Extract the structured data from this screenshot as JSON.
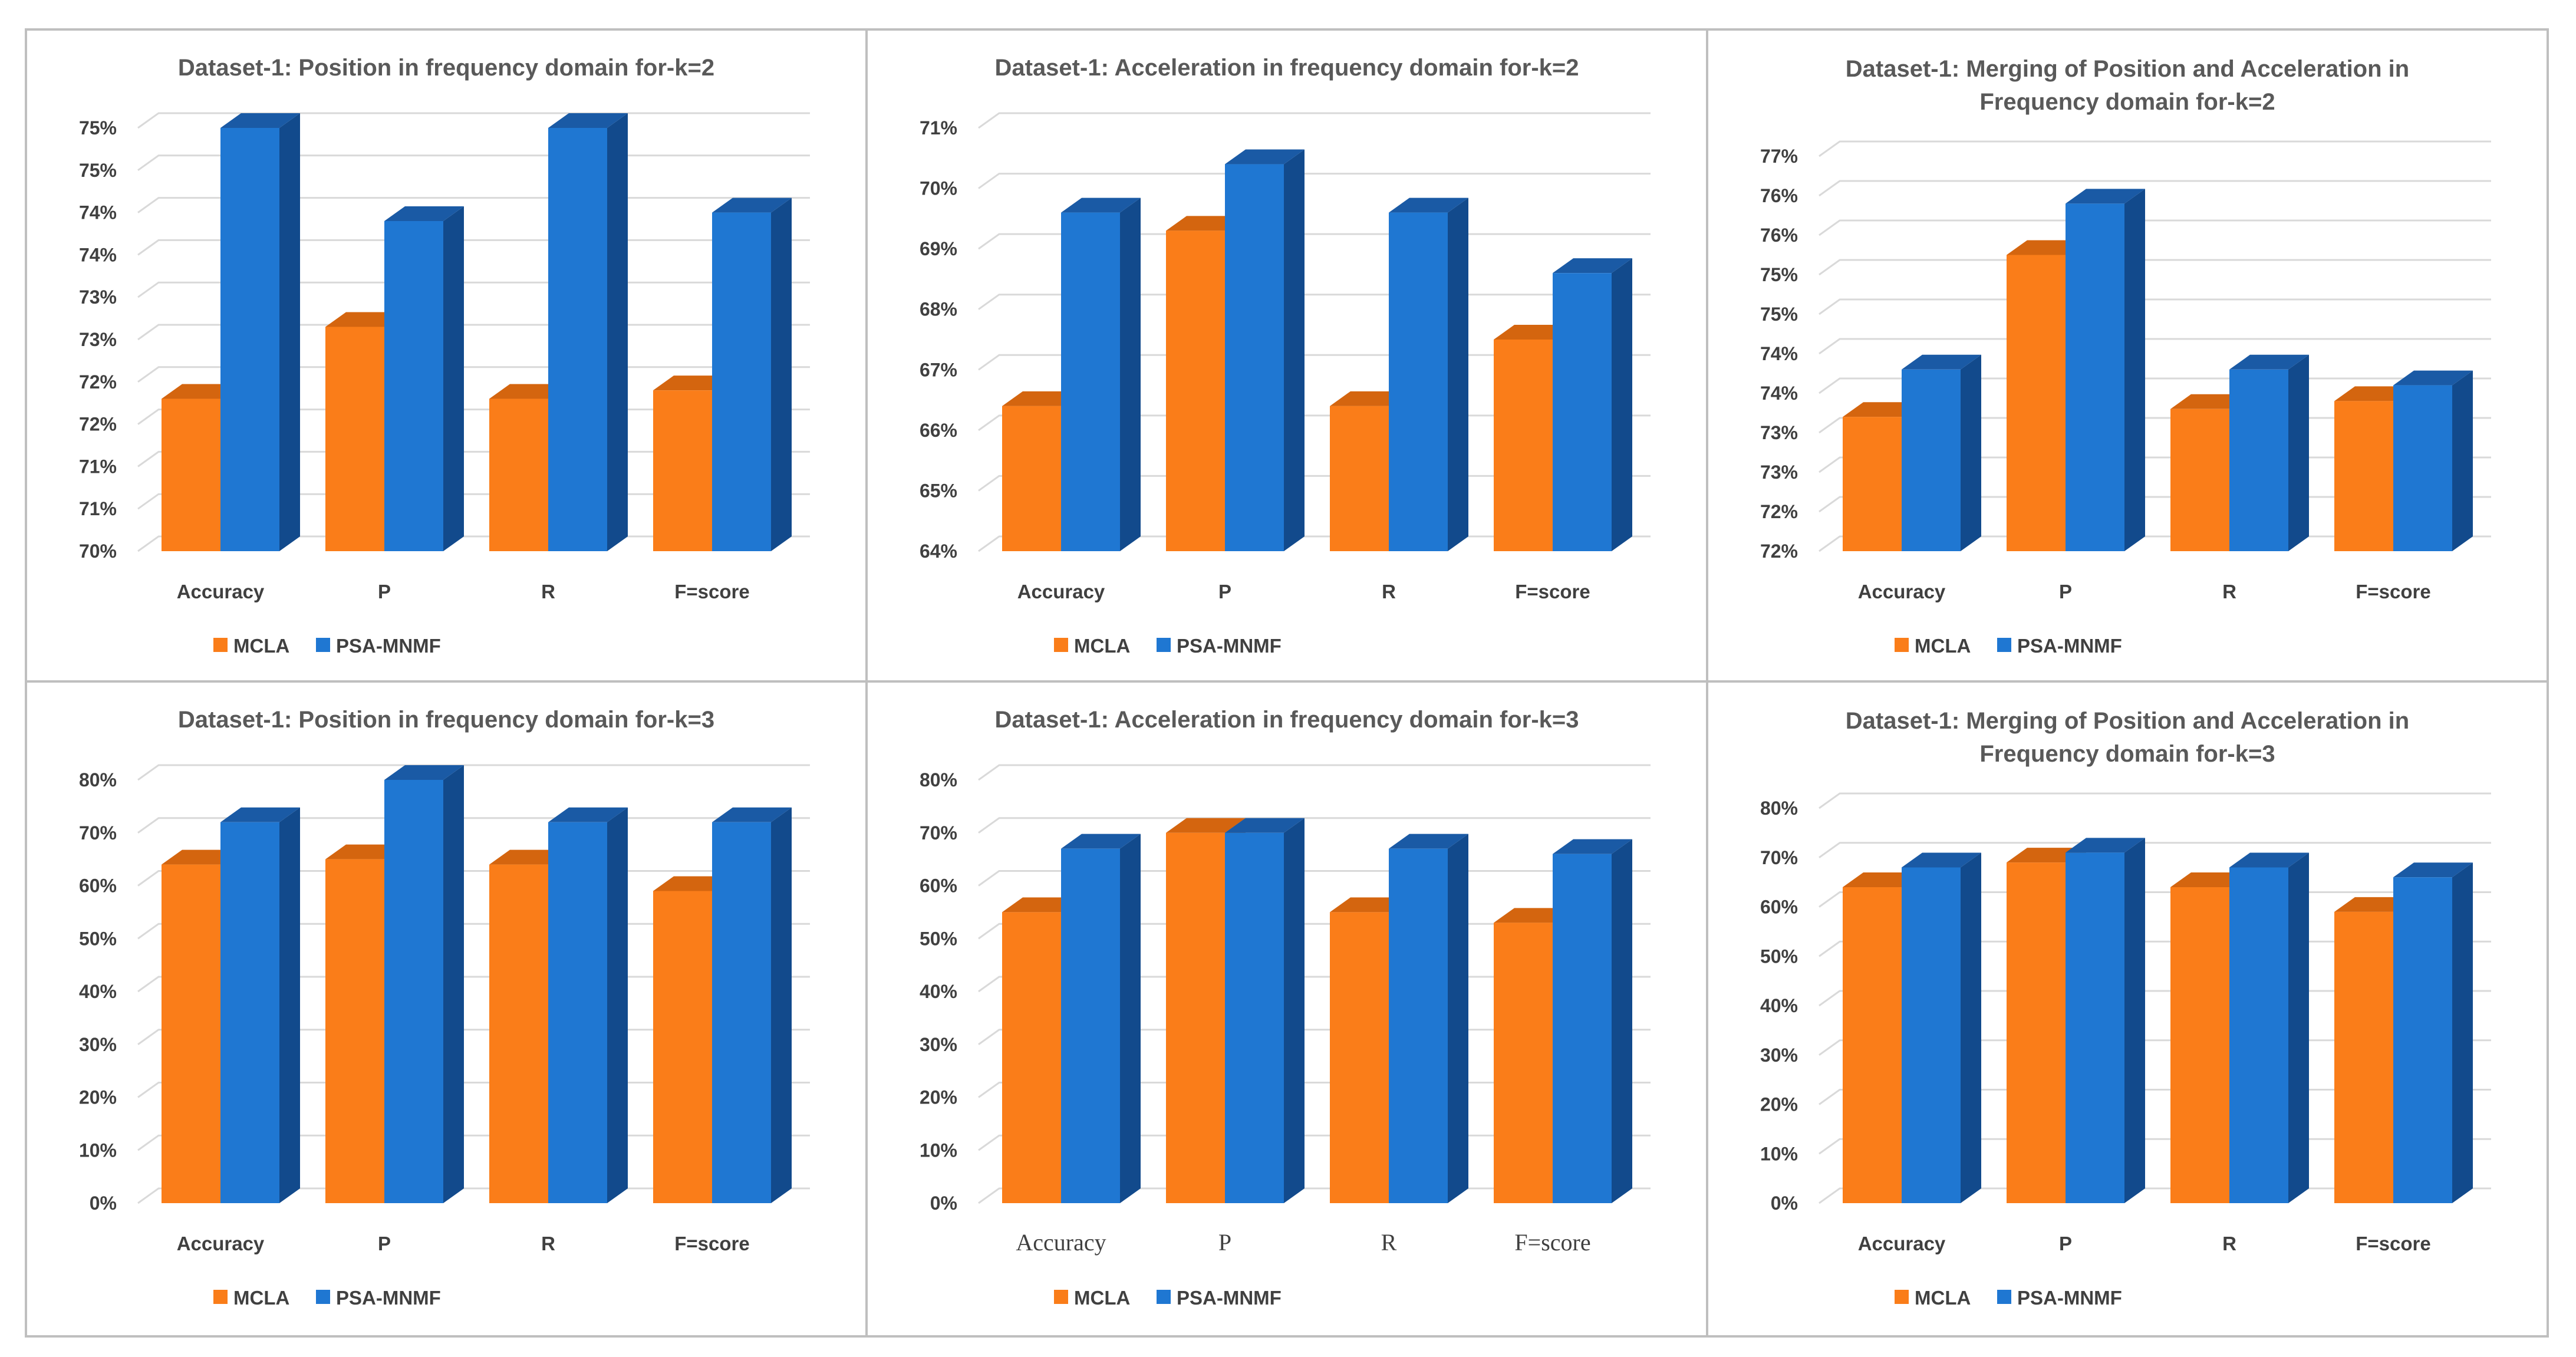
{
  "colors": {
    "MCLA": "#fa7d19",
    "MCLA_top": "#d4650f",
    "MCLA_side": "#c45c0a",
    "PSA-MNMF": "#1f77d2",
    "PSA-MNMF_top": "#1a5aa5",
    "PSA-MNMF_side": "#124a8c",
    "grid": "#d9d9d9",
    "frame": "#bfbfbf"
  },
  "chart_data": [
    {
      "type": "bar",
      "title": "Dataset-1: Position in frequency domain for-k=2",
      "categories": [
        "Accuracy",
        "P",
        "R",
        "F=score"
      ],
      "series": [
        {
          "name": "MCLA",
          "values": [
            71.8,
            72.65,
            71.8,
            71.9
          ]
        },
        {
          "name": "PSA-MNMF",
          "values": [
            75.0,
            73.9,
            75.0,
            74.0
          ]
        }
      ],
      "ylim": [
        70,
        75
      ],
      "tick_labels": [
        "70%",
        "71%",
        "71%",
        "72%",
        "72%",
        "73%",
        "73%",
        "74%",
        "74%",
        "75%",
        "75%"
      ],
      "grid": true,
      "legend": "bottom",
      "xlabel": "",
      "ylabel": ""
    },
    {
      "type": "bar",
      "title": "Dataset-1: Acceleration in frequency domain for-k=2",
      "categories": [
        "Accuracy",
        "P",
        "R",
        "F=score"
      ],
      "series": [
        {
          "name": "MCLA",
          "values": [
            66.4,
            69.3,
            66.4,
            67.5
          ]
        },
        {
          "name": "PSA-MNMF",
          "values": [
            69.6,
            70.4,
            69.6,
            68.6
          ]
        }
      ],
      "ylim": [
        64,
        71
      ],
      "tick_labels": [
        "64%",
        "65%",
        "66%",
        "67%",
        "68%",
        "69%",
        "70%",
        "71%"
      ],
      "grid": true,
      "legend": "bottom",
      "xlabel": "",
      "ylabel": ""
    },
    {
      "type": "bar",
      "title": "Dataset-1: Merging of Position and Acceleration in Frequency domain for-k=2",
      "title_lines": [
        "Dataset-1: Merging of Position and Acceleration in",
        "Frequency domain for-k=2"
      ],
      "categories": [
        "Accuracy",
        "P",
        "R",
        "F=score"
      ],
      "series": [
        {
          "name": "MCLA",
          "values": [
            73.7,
            75.75,
            73.8,
            73.9
          ]
        },
        {
          "name": "PSA-MNMF",
          "values": [
            74.3,
            76.4,
            74.3,
            74.1
          ]
        }
      ],
      "ylim": [
        72,
        77
      ],
      "tick_labels": [
        "72%",
        "72%",
        "73%",
        "73%",
        "74%",
        "74%",
        "75%",
        "75%",
        "76%",
        "76%",
        "77%"
      ],
      "grid": true,
      "legend": "bottom",
      "xlabel": "",
      "ylabel": ""
    },
    {
      "type": "bar",
      "title": "Dataset-1: Position in frequency domain for-k=3",
      "categories": [
        "Accuracy",
        "P",
        "R",
        "F=score"
      ],
      "series": [
        {
          "name": "MCLA",
          "values": [
            64,
            65,
            64,
            59
          ]
        },
        {
          "name": "PSA-MNMF",
          "values": [
            72,
            80,
            72,
            72
          ]
        }
      ],
      "ylim": [
        0,
        80
      ],
      "tick_labels": [
        "0%",
        "10%",
        "20%",
        "30%",
        "40%",
        "50%",
        "60%",
        "70%",
        "80%"
      ],
      "grid": true,
      "legend": "bottom",
      "xlabel": "",
      "ylabel": ""
    },
    {
      "type": "bar",
      "title": "Dataset-1: Acceleration in frequency domain for-k=3",
      "categories": [
        "Accuracy",
        "P",
        "R",
        "F=score"
      ],
      "series": [
        {
          "name": "MCLA",
          "values": [
            55,
            70,
            55,
            53
          ]
        },
        {
          "name": "PSA-MNMF",
          "values": [
            67,
            70,
            67,
            66
          ]
        }
      ],
      "ylim": [
        0,
        80
      ],
      "tick_labels": [
        "0%",
        "10%",
        "20%",
        "30%",
        "40%",
        "50%",
        "60%",
        "70%",
        "80%"
      ],
      "category_font": "serif",
      "grid": true,
      "legend": "bottom",
      "xlabel": "",
      "ylabel": ""
    },
    {
      "type": "bar",
      "title": "Dataset-1: Merging of Position and Acceleration in Frequency domain for-k=3",
      "title_lines": [
        "Dataset-1: Merging of Position and Acceleration in",
        "Frequency domain for-k=3"
      ],
      "categories": [
        "Accuracy",
        "P",
        "R",
        "F=score"
      ],
      "series": [
        {
          "name": "MCLA",
          "values": [
            64,
            69,
            64,
            59
          ]
        },
        {
          "name": "PSA-MNMF",
          "values": [
            68,
            71,
            68,
            66
          ]
        }
      ],
      "ylim": [
        0,
        80
      ],
      "tick_labels": [
        "0%",
        "10%",
        "20%",
        "30%",
        "40%",
        "50%",
        "60%",
        "70%",
        "80%"
      ],
      "grid": true,
      "legend": "bottom",
      "xlabel": "",
      "ylabel": ""
    }
  ]
}
